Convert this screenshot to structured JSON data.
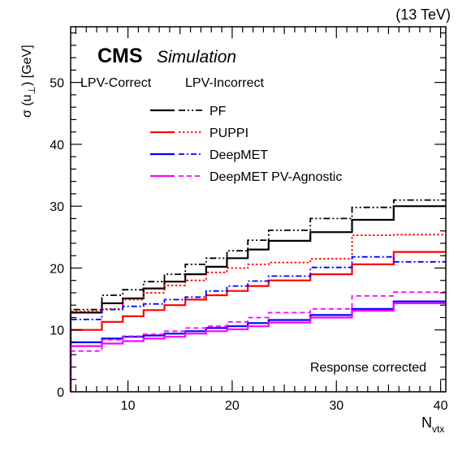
{
  "chart_data": {
    "type": "line",
    "title": "(13 TeV)",
    "experiment": "CMS",
    "experiment_tag": "Simulation",
    "xlabel_main": "N",
    "xlabel_sub": "vtx",
    "ylabel_main": "σ (u",
    "ylabel_sub": "⊥",
    "ylabel_tail": ") [GeV]",
    "annotation": "Response corrected",
    "legend_header_correct": "LPV-Correct",
    "legend_header_incorrect": "LPV-Incorrect",
    "legend_placement": "top-left",
    "xlim": [
      4.5,
      40.5
    ],
    "ylim": [
      0,
      59
    ],
    "xticks": [
      10,
      20,
      30,
      40
    ],
    "yticks": [
      0,
      10,
      20,
      30,
      40,
      50
    ],
    "xtick_labels": [
      "10",
      "20",
      "30",
      "40"
    ],
    "ytick_labels": [
      "0",
      "10",
      "20",
      "30",
      "40",
      "50"
    ],
    "bin_edges": [
      4.5,
      7.5,
      9.5,
      11.5,
      13.5,
      15.5,
      17.5,
      19.5,
      21.5,
      23.5,
      27.5,
      31.5,
      35.5,
      40.5
    ],
    "series": [
      {
        "name": "PF",
        "variant": "correct",
        "color": "#000000",
        "style": "solid",
        "values": [
          12.8,
          14.3,
          15.1,
          16.7,
          17.8,
          19.0,
          20.2,
          21.6,
          23.0,
          24.4,
          25.8,
          27.8,
          30.0
        ]
      },
      {
        "name": "PF",
        "variant": "incorrect",
        "color": "#000000",
        "style": "dashdotdot",
        "values": [
          13.3,
          15.6,
          16.5,
          17.8,
          19.0,
          20.6,
          21.6,
          22.8,
          24.5,
          26.1,
          28.0,
          29.8,
          31.0
        ]
      },
      {
        "name": "PUPPI",
        "variant": "correct",
        "color": "#ff0000",
        "style": "solid",
        "values": [
          10.0,
          11.3,
          12.2,
          13.2,
          14.0,
          14.9,
          15.6,
          16.3,
          17.1,
          18.0,
          19.0,
          20.6,
          22.6
        ]
      },
      {
        "name": "PUPPI",
        "variant": "incorrect",
        "color": "#ff0000",
        "style": "dotted",
        "values": [
          13.0,
          13.4,
          14.9,
          16.0,
          17.2,
          18.0,
          19.3,
          20.0,
          20.6,
          20.9,
          21.5,
          25.3,
          25.4
        ]
      },
      {
        "name": "DeepMET",
        "variant": "correct",
        "color": "#0000ff",
        "style": "solid",
        "values": [
          8.0,
          8.6,
          8.9,
          9.1,
          9.4,
          9.8,
          10.3,
          10.6,
          11.1,
          11.6,
          12.4,
          13.4,
          14.6
        ]
      },
      {
        "name": "DeepMET",
        "variant": "incorrect",
        "color": "#0000ff",
        "style": "dashdot",
        "values": [
          11.7,
          13.3,
          13.8,
          14.2,
          14.9,
          15.3,
          16.3,
          17.1,
          17.9,
          18.7,
          20.1,
          21.8,
          21.0
        ]
      },
      {
        "name": "DeepMET PV-Agnostic",
        "variant": "correct",
        "color": "#ff00ff",
        "style": "solid",
        "values": [
          7.4,
          7.8,
          8.2,
          8.6,
          8.9,
          9.4,
          9.8,
          10.1,
          10.6,
          11.2,
          12.0,
          13.1,
          14.3
        ]
      },
      {
        "name": "DeepMET PV-Agnostic",
        "variant": "incorrect",
        "color": "#ff00ff",
        "style": "dashed",
        "values": [
          6.6,
          8.4,
          9.0,
          9.3,
          9.8,
          10.3,
          10.6,
          11.3,
          12.0,
          12.8,
          13.4,
          15.5,
          16.1
        ]
      }
    ]
  }
}
